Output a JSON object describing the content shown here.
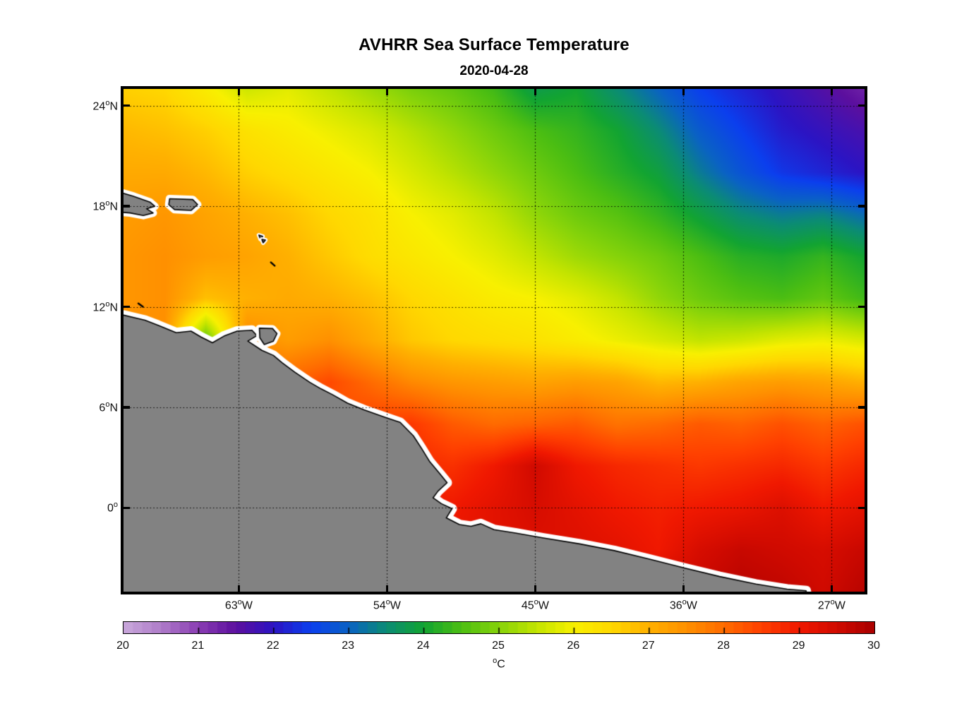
{
  "title": "AVHRR Sea Surface Temperature",
  "subtitle": "2020-04-28",
  "axes": {
    "lat_ticks": [
      {
        "deg": 24,
        "label": "24",
        "sup": "o",
        "suffix": "N"
      },
      {
        "deg": 18,
        "label": "18",
        "sup": "o",
        "suffix": "N"
      },
      {
        "deg": 12,
        "label": "12",
        "sup": "o",
        "suffix": "N"
      },
      {
        "deg": 6,
        "label": "6",
        "sup": "o",
        "suffix": "N"
      },
      {
        "deg": 0,
        "label": "0",
        "sup": "o",
        "suffix": ""
      }
    ],
    "lon_ticks": [
      {
        "deg": -63,
        "label": "63",
        "sup": "o",
        "suffix": "W"
      },
      {
        "deg": -54,
        "label": "54",
        "sup": "o",
        "suffix": "W"
      },
      {
        "deg": -45,
        "label": "45",
        "sup": "o",
        "suffix": "W"
      },
      {
        "deg": -36,
        "label": "36",
        "sup": "o",
        "suffix": "W"
      },
      {
        "deg": -27,
        "label": "27",
        "sup": "o",
        "suffix": "W"
      }
    ]
  },
  "colorbar": {
    "range": [
      20,
      30
    ],
    "tick_labels": [
      "20",
      "21",
      "22",
      "23",
      "24",
      "25",
      "26",
      "27",
      "28",
      "29",
      "30"
    ],
    "unit_sup": "o",
    "unit": "C",
    "segments": 80
  },
  "chart_data": {
    "type": "heatmap",
    "title": "AVHRR Sea Surface Temperature",
    "subtitle": "2020-04-28",
    "units": "degC",
    "lon_min": -70,
    "lon_max": -25,
    "lat_min": -5,
    "lat_max": 25,
    "grid_lons": [
      -70,
      -67.5,
      -65,
      -62.5,
      -60,
      -57.5,
      -55,
      -52.5,
      -50,
      -47.5,
      -45,
      -42.5,
      -40,
      -37.5,
      -35,
      -32.5,
      -30,
      -27.5,
      -25
    ],
    "grid_lats": [
      25,
      22.5,
      20,
      17.5,
      15,
      12.5,
      10,
      7.5,
      5,
      2.5,
      0,
      -2.5,
      -5
    ],
    "sst": [
      [
        26.6,
        26.5,
        26.1,
        25.6,
        25.8,
        25.5,
        25.2,
        24.9,
        24.7,
        24.4,
        23.8,
        24.0,
        23.5,
        23.0,
        22.5,
        22.2,
        21.9,
        21.6,
        21.3
      ],
      [
        26.9,
        26.8,
        26.6,
        26.3,
        26.1,
        25.9,
        25.7,
        25.4,
        25.1,
        24.8,
        24.5,
        24.3,
        24.0,
        23.5,
        22.9,
        22.5,
        22.1,
        21.9,
        21.7
      ],
      [
        27.1,
        27.1,
        26.9,
        26.6,
        26.4,
        26.2,
        26.0,
        25.7,
        25.4,
        25.1,
        24.8,
        24.5,
        24.2,
        23.9,
        23.3,
        22.8,
        22.4,
        22.2,
        22.0
      ],
      [
        27.3,
        27.4,
        27.2,
        27.0,
        26.8,
        26.5,
        26.3,
        26.0,
        25.8,
        25.5,
        25.1,
        24.8,
        24.6,
        24.3,
        23.9,
        23.5,
        23.3,
        23.4,
        23.1
      ],
      [
        27.4,
        27.5,
        27.3,
        27.2,
        27.0,
        26.7,
        26.4,
        26.2,
        26.0,
        25.8,
        25.5,
        25.2,
        25.0,
        24.8,
        24.5,
        24.2,
        24.1,
        24.3,
        24.0
      ],
      [
        27.4,
        27.5,
        26.8,
        27.0,
        27.1,
        27.0,
        26.8,
        26.5,
        26.3,
        26.1,
        26.0,
        25.8,
        25.5,
        25.1,
        24.8,
        24.6,
        24.5,
        24.7,
        24.4
      ],
      [
        27.5,
        27.5,
        24.6,
        27.6,
        27.3,
        27.5,
        27.1,
        26.7,
        26.5,
        26.4,
        26.3,
        26.1,
        25.9,
        25.7,
        25.5,
        25.6,
        25.8,
        25.9,
        25.7
      ],
      [
        27.8,
        27.8,
        27.8,
        27.9,
        28.1,
        28.4,
        28.0,
        27.6,
        27.4,
        27.3,
        27.2,
        27.3,
        27.2,
        26.9,
        27.0,
        27.2,
        27.3,
        27.2,
        27.0
      ],
      [
        28.0,
        28.0,
        28.0,
        28.0,
        28.0,
        28.2,
        28.5,
        28.6,
        28.2,
        28.0,
        28.1,
        28.2,
        27.9,
        28.0,
        28.2,
        28.1,
        28.3,
        28.1,
        28.3
      ],
      [
        28.3,
        28.3,
        28.3,
        28.3,
        28.3,
        28.4,
        28.6,
        28.8,
        28.7,
        29.0,
        29.5,
        29.0,
        28.8,
        28.7,
        28.6,
        28.7,
        28.8,
        28.6,
        28.8
      ],
      [
        28.6,
        28.6,
        28.6,
        28.6,
        28.6,
        28.6,
        28.8,
        29.0,
        29.0,
        29.2,
        29.4,
        29.2,
        29.0,
        28.9,
        29.0,
        29.1,
        29.3,
        29.0,
        29.2
      ],
      [
        28.8,
        28.8,
        28.8,
        28.8,
        28.8,
        28.8,
        28.9,
        29.0,
        29.1,
        29.2,
        29.3,
        29.3,
        29.2,
        29.0,
        29.4,
        29.6,
        29.5,
        29.4,
        29.6
      ],
      [
        29.0,
        29.0,
        29.0,
        29.0,
        29.0,
        29.0,
        29.0,
        29.1,
        29.2,
        29.3,
        29.4,
        29.5,
        29.5,
        29.5,
        29.6,
        29.8,
        29.7,
        29.5,
        29.8
      ]
    ],
    "colormap_anchors": [
      [
        20.0,
        "#C9A8DB"
      ],
      [
        20.5,
        "#AF7CC9"
      ],
      [
        21.0,
        "#8A3DB3"
      ],
      [
        21.5,
        "#5C0F9E"
      ],
      [
        22.0,
        "#2C14C3"
      ],
      [
        22.5,
        "#0B3FEE"
      ],
      [
        23.0,
        "#0A62C4"
      ],
      [
        23.5,
        "#0B8C74"
      ],
      [
        24.0,
        "#12A432"
      ],
      [
        24.5,
        "#4CBE12"
      ],
      [
        25.0,
        "#86D30A"
      ],
      [
        25.5,
        "#C3E400"
      ],
      [
        26.0,
        "#F8F000"
      ],
      [
        26.5,
        "#FFD800"
      ],
      [
        27.0,
        "#FFB000"
      ],
      [
        27.5,
        "#FF9000"
      ],
      [
        28.0,
        "#FF6B00"
      ],
      [
        28.5,
        "#FF4000"
      ],
      [
        29.0,
        "#F01800"
      ],
      [
        29.5,
        "#D00A00"
      ],
      [
        30.0,
        "#A80000"
      ]
    ],
    "land_color": "#828282",
    "coast_nodata_color": "#FFFFFF",
    "coastline_color": "#000000",
    "land_polygons": {
      "mainland": [
        [
          -70,
          11.5
        ],
        [
          -68.7,
          11.2
        ],
        [
          -67.9,
          10.9
        ],
        [
          -66.8,
          10.45
        ],
        [
          -65.9,
          10.55
        ],
        [
          -65.3,
          10.2
        ],
        [
          -64.6,
          9.85
        ],
        [
          -63.9,
          10.25
        ],
        [
          -63.1,
          10.55
        ],
        [
          -62.2,
          10.6
        ],
        [
          -61.9,
          10.28
        ],
        [
          -62.45,
          9.95
        ],
        [
          -61.6,
          9.4
        ],
        [
          -60.9,
          9.1
        ],
        [
          -60.35,
          8.65
        ],
        [
          -59.6,
          8.1
        ],
        [
          -58.7,
          7.5
        ],
        [
          -58.0,
          7.1
        ],
        [
          -57.3,
          6.75
        ],
        [
          -56.4,
          6.25
        ],
        [
          -55.4,
          5.85
        ],
        [
          -54.1,
          5.4
        ],
        [
          -53.2,
          5.1
        ],
        [
          -52.4,
          4.3
        ],
        [
          -51.9,
          3.55
        ],
        [
          -51.4,
          2.75
        ],
        [
          -50.8,
          2.05
        ],
        [
          -50.35,
          1.5
        ],
        [
          -50.9,
          1.0
        ],
        [
          -51.2,
          0.6
        ],
        [
          -50.7,
          0.25
        ],
        [
          -50.05,
          -0.05
        ],
        [
          -50.4,
          -0.6
        ],
        [
          -49.6,
          -1.0
        ],
        [
          -48.9,
          -1.1
        ],
        [
          -48.3,
          -0.95
        ],
        [
          -47.5,
          -1.3
        ],
        [
          -46.2,
          -1.5
        ],
        [
          -44.5,
          -1.8
        ],
        [
          -42.3,
          -2.15
        ],
        [
          -40.2,
          -2.55
        ],
        [
          -38.1,
          -3.05
        ],
        [
          -35.9,
          -3.6
        ],
        [
          -33.8,
          -4.1
        ],
        [
          -31.6,
          -4.55
        ],
        [
          -29.7,
          -4.85
        ],
        [
          -28.55,
          -4.95
        ],
        [
          -28.3,
          -6.5
        ],
        [
          -71.5,
          -6.5
        ],
        [
          -71.5,
          11.2
        ]
      ],
      "hispaniola": [
        [
          -70.8,
          19.0
        ],
        [
          -69.4,
          18.6
        ],
        [
          -68.4,
          18.25
        ],
        [
          -68.1,
          18.0
        ],
        [
          -68.6,
          17.85
        ],
        [
          -68.2,
          17.6
        ],
        [
          -68.8,
          17.45
        ],
        [
          -69.6,
          17.6
        ],
        [
          -70.8,
          17.7
        ]
      ],
      "puerto_rico": [
        [
          -67.2,
          18.45
        ],
        [
          -65.8,
          18.4
        ],
        [
          -65.5,
          18.1
        ],
        [
          -65.9,
          17.75
        ],
        [
          -66.9,
          17.8
        ],
        [
          -67.25,
          18.1
        ]
      ],
      "trinidad": [
        [
          -61.75,
          10.72
        ],
        [
          -60.95,
          10.7
        ],
        [
          -60.68,
          10.4
        ],
        [
          -60.9,
          9.95
        ],
        [
          -61.45,
          9.75
        ],
        [
          -61.72,
          10.15
        ]
      ],
      "islets": [
        [
          [
            -61.78,
            16.28
          ],
          [
            -61.55,
            16.2
          ],
          [
            -61.68,
            16.03
          ]
        ],
        [
          [
            -61.6,
            16.02
          ],
          [
            -61.38,
            15.98
          ],
          [
            -61.52,
            15.82
          ]
        ]
      ],
      "island_marks": [
        [
          [
            -61.05,
            14.65
          ],
          [
            -60.82,
            14.45
          ]
        ],
        [
          [
            -69.1,
            12.2
          ],
          [
            -68.82,
            12.0
          ]
        ]
      ]
    }
  }
}
